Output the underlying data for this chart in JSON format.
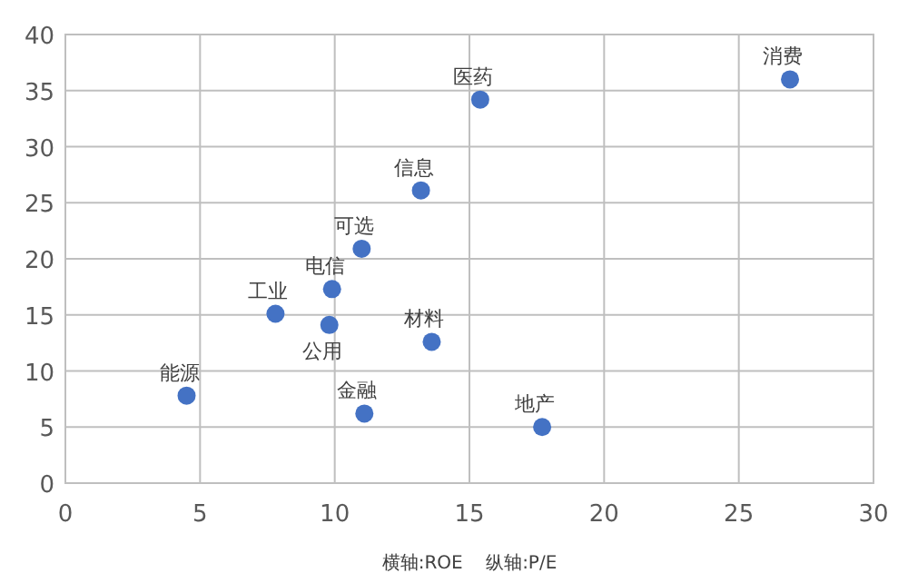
{
  "chart_data": {
    "type": "scatter",
    "xlim": [
      0,
      30
    ],
    "ylim": [
      0,
      40
    ],
    "xticks": [
      0,
      5,
      10,
      15,
      20,
      25,
      30
    ],
    "yticks": [
      0,
      5,
      10,
      15,
      20,
      25,
      30,
      35,
      40
    ],
    "grid": true,
    "marker": "circle",
    "annotations": [
      "横轴:ROE    纵轴:P/E"
    ],
    "series": [
      {
        "name": "能源",
        "color": "#4472c4",
        "x": [
          4.5
        ],
        "values": [
          7.8
        ]
      },
      {
        "name": "工业",
        "color": "#4472c4",
        "x": [
          7.8
        ],
        "values": [
          15.1
        ]
      },
      {
        "name": "公用",
        "color": "#4472c4",
        "x": [
          9.8
        ],
        "values": [
          14.1
        ]
      },
      {
        "name": "电信",
        "color": "#4472c4",
        "x": [
          9.9
        ],
        "values": [
          17.3
        ]
      },
      {
        "name": "可选",
        "color": "#4472c4",
        "x": [
          11.0
        ],
        "values": [
          20.9
        ]
      },
      {
        "name": "信息",
        "color": "#4472c4",
        "x": [
          13.2
        ],
        "values": [
          26.1
        ]
      },
      {
        "name": "医药",
        "color": "#4472c4",
        "x": [
          15.4
        ],
        "values": [
          34.2
        ]
      },
      {
        "name": "材料",
        "color": "#4472c4",
        "x": [
          13.6
        ],
        "values": [
          12.6
        ]
      },
      {
        "name": "金融",
        "color": "#4472c4",
        "x": [
          11.1
        ],
        "values": [
          6.2
        ]
      },
      {
        "name": "地产",
        "color": "#4472c4",
        "x": [
          17.7
        ],
        "values": [
          5.0
        ]
      },
      {
        "name": "消费",
        "color": "#4472c4",
        "x": [
          26.9
        ],
        "values": [
          36.0
        ]
      }
    ]
  }
}
